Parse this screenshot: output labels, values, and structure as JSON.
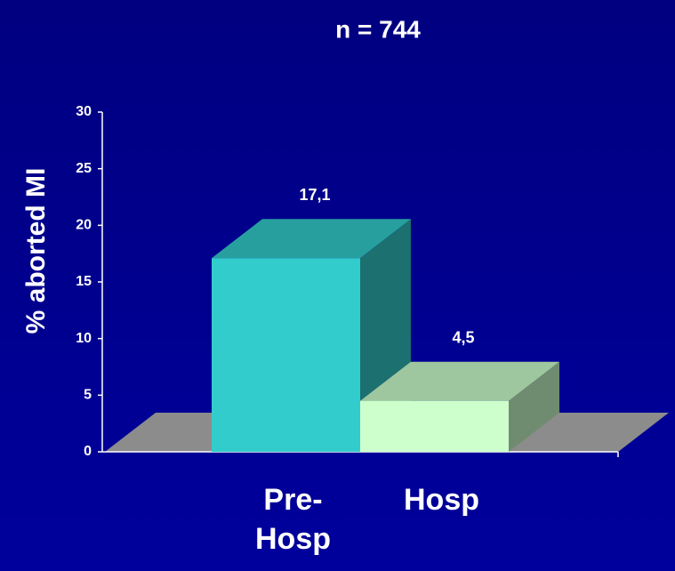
{
  "chart_data": {
    "type": "bar3d",
    "title": "n = 744",
    "y_label": "% aborted MI",
    "categories": [
      "Pre-\nHosp",
      "Hosp"
    ],
    "values": [
      17.1,
      4.5
    ],
    "value_labels": [
      "17,1",
      "4,5"
    ],
    "colors": [
      "#33cccc",
      "#ccffcc"
    ],
    "ylim": [
      0,
      30
    ],
    "yticks": [
      0,
      5,
      10,
      15,
      20,
      25,
      30
    ],
    "grid": false
  }
}
